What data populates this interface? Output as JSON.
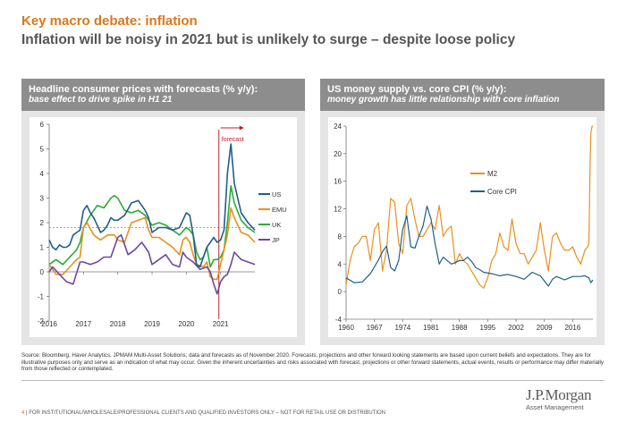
{
  "header": {
    "kicker": "Key macro debate: inflation",
    "title": "Inflation will be noisy in 2021 but is unlikely to surge – despite loose policy"
  },
  "left_panel": {
    "title": "Headline consumer prices with forecasts (% y/y):",
    "subtitle": "base effect to drive spike in H1 21",
    "forecast_label": "forecast"
  },
  "right_panel": {
    "title": "US money supply vs. core CPI (% y/y):",
    "subtitle": "money growth has little relationship with core inflation"
  },
  "source_text": "Source: Bloomberg, Haver Analytics, JPMAM Multi-Asset Solutions; data and forecasts as of November 2020. Forecasts, projections and other forward looking statements are based upon current beliefs and expectations. They are for illustrative purposes only and serve as an indication of what may occur. Given the inherent uncertainties and risks associated with forecast, projections or other forward statements, actual events, results or performance may differ materially from those reflected or contemplated.",
  "footer": {
    "page": "4",
    "separator": "|",
    "text": "FOR INSTITUTIONAL/WHOLESALE/PROFESSIONAL CLIENTS AND QUALIFIED INVESTORS ONLY – NOT FOR RETAIL USE OR DISTRIBUTION"
  },
  "logo": {
    "name": "J.P.Morgan",
    "sub": "Asset Management"
  },
  "colors": {
    "accent": "#d9781a",
    "us": "#1f5f8b",
    "emu": "#e8901e",
    "uk": "#2eaa3a",
    "jp": "#6a4a9c",
    "forecast": "#c0202a"
  },
  "chart_data": [
    {
      "type": "line",
      "title": "Headline consumer prices with forecasts (% y/y):",
      "subtitle": "base effect to drive spike in H1 21",
      "xlim": [
        2016.0,
        2022.0
      ],
      "ylim": [
        -2,
        6
      ],
      "x_ticks": [
        "2016",
        "2017",
        "2018",
        "2019",
        "2020",
        "2021"
      ],
      "y_ticks": [
        "-2",
        "-1",
        "0",
        "1",
        "2",
        "3",
        "4",
        "5",
        "6"
      ],
      "forecast_start": 2020.95,
      "reference_line": 1.8,
      "legend_position": "right",
      "series": [
        {
          "name": "US",
          "color": "#1f5f8b",
          "x": [
            2016.0,
            2016.1,
            2016.2,
            2016.3,
            2016.4,
            2016.5,
            2016.6,
            2016.7,
            2016.8,
            2016.9,
            2017.0,
            2017.1,
            2017.2,
            2017.3,
            2017.4,
            2017.5,
            2017.6,
            2017.7,
            2017.8,
            2017.9,
            2018.0,
            2018.2,
            2018.4,
            2018.6,
            2018.8,
            2018.9,
            2019.0,
            2019.2,
            2019.4,
            2019.6,
            2019.8,
            2019.9,
            2020.0,
            2020.1,
            2020.2,
            2020.3,
            2020.4,
            2020.5,
            2020.6,
            2020.8,
            2020.9,
            2021.0,
            2021.1,
            2021.2,
            2021.3,
            2021.4,
            2021.5,
            2021.6,
            2021.8,
            2022.0
          ],
          "y": [
            1.3,
            1.0,
            0.9,
            1.1,
            1.0,
            1.0,
            1.1,
            1.5,
            1.6,
            1.7,
            2.5,
            2.7,
            2.4,
            2.2,
            1.9,
            1.6,
            1.7,
            1.9,
            2.2,
            2.1,
            2.1,
            2.3,
            2.8,
            2.9,
            2.5,
            2.2,
            1.6,
            1.8,
            1.8,
            1.7,
            1.8,
            2.1,
            2.4,
            2.3,
            1.5,
            0.3,
            0.2,
            0.6,
            1.0,
            1.4,
            1.2,
            1.3,
            1.7,
            4.0,
            5.2,
            3.6,
            3.0,
            2.4,
            2.0,
            1.7
          ]
        },
        {
          "name": "EMU",
          "color": "#e8901e",
          "x": [
            2016.0,
            2016.2,
            2016.4,
            2016.6,
            2016.8,
            2016.9,
            2017.0,
            2017.1,
            2017.3,
            2017.5,
            2017.7,
            2017.9,
            2018.0,
            2018.2,
            2018.4,
            2018.6,
            2018.8,
            2018.9,
            2019.0,
            2019.2,
            2019.4,
            2019.6,
            2019.8,
            2019.9,
            2020.0,
            2020.1,
            2020.2,
            2020.3,
            2020.5,
            2020.6,
            2020.7,
            2020.8,
            2020.9,
            2021.0,
            2021.1,
            2021.2,
            2021.3,
            2021.4,
            2021.6,
            2021.8,
            2022.0
          ],
          "y": [
            0.3,
            -0.1,
            -0.1,
            0.2,
            0.5,
            0.6,
            1.8,
            2.0,
            1.5,
            1.3,
            1.5,
            1.5,
            1.3,
            1.2,
            2.0,
            2.1,
            2.2,
            1.7,
            1.4,
            1.4,
            1.2,
            1.0,
            0.7,
            1.3,
            1.4,
            1.2,
            0.7,
            0.3,
            0.2,
            0.4,
            -0.2,
            -0.3,
            -0.3,
            0.3,
            0.9,
            1.5,
            2.6,
            2.2,
            1.6,
            1.5,
            1.2
          ]
        },
        {
          "name": "UK",
          "color": "#2eaa3a",
          "x": [
            2016.0,
            2016.2,
            2016.4,
            2016.6,
            2016.8,
            2016.9,
            2017.0,
            2017.2,
            2017.4,
            2017.6,
            2017.8,
            2017.9,
            2018.0,
            2018.2,
            2018.4,
            2018.6,
            2018.8,
            2019.0,
            2019.2,
            2019.4,
            2019.6,
            2019.8,
            2020.0,
            2020.1,
            2020.2,
            2020.3,
            2020.4,
            2020.5,
            2020.6,
            2020.7,
            2020.8,
            2020.9,
            2021.0,
            2021.1,
            2021.2,
            2021.3,
            2021.4,
            2021.6,
            2021.8,
            2022.0
          ],
          "y": [
            0.3,
            0.5,
            0.3,
            0.6,
            0.9,
            1.2,
            1.8,
            2.3,
            2.7,
            2.6,
            3.0,
            3.1,
            3.0,
            2.5,
            2.4,
            2.5,
            2.3,
            1.9,
            2.0,
            1.9,
            1.7,
            1.5,
            1.8,
            1.7,
            1.5,
            0.8,
            0.5,
            0.6,
            1.0,
            0.2,
            0.5,
            0.5,
            0.6,
            0.9,
            2.0,
            3.5,
            2.8,
            2.1,
            1.8,
            1.6
          ]
        },
        {
          "name": "JP",
          "color": "#6a4a9c",
          "x": [
            2016.0,
            2016.1,
            2016.3,
            2016.5,
            2016.7,
            2016.9,
            2017.0,
            2017.2,
            2017.4,
            2017.6,
            2017.8,
            2018.0,
            2018.1,
            2018.3,
            2018.5,
            2018.7,
            2018.9,
            2019.0,
            2019.2,
            2019.4,
            2019.6,
            2019.8,
            2019.9,
            2020.0,
            2020.2,
            2020.4,
            2020.6,
            2020.7,
            2020.8,
            2020.9,
            2021.0,
            2021.1,
            2021.2,
            2021.3,
            2021.4,
            2021.6,
            2021.8,
            2022.0
          ],
          "y": [
            0.0,
            0.2,
            -0.1,
            -0.4,
            -0.5,
            0.4,
            0.4,
            0.3,
            0.4,
            0.6,
            0.6,
            1.4,
            1.5,
            0.7,
            0.9,
            1.2,
            0.8,
            0.3,
            0.5,
            0.7,
            0.3,
            0.2,
            0.8,
            0.6,
            0.4,
            0.1,
            0.2,
            0.0,
            -0.5,
            -0.9,
            -0.4,
            -0.2,
            -0.1,
            0.3,
            0.8,
            0.5,
            0.4,
            0.3
          ]
        }
      ]
    },
    {
      "type": "line",
      "title": "US money supply vs. core CPI (% y/y):",
      "subtitle": "money growth has little relationship with core inflation",
      "xlim": [
        1960,
        2021
      ],
      "ylim": [
        -4,
        24
      ],
      "x_ticks": [
        "1960",
        "1967",
        "1974",
        "1981",
        "1988",
        "1995",
        "2002",
        "2009",
        "2016"
      ],
      "y_ticks": [
        "-4",
        "0",
        "4",
        "8",
        "12",
        "16",
        "20",
        "24"
      ],
      "legend_position": "center-left",
      "series": [
        {
          "name": "M2",
          "color": "#e8901e",
          "x": [
            1960,
            1961,
            1962,
            1963,
            1964,
            1965,
            1966,
            1967,
            1968,
            1969,
            1970,
            1971,
            1972,
            1973,
            1974,
            1975,
            1976,
            1977,
            1978,
            1979,
            1980,
            1981,
            1982,
            1983,
            1984,
            1985,
            1986,
            1987,
            1988,
            1989,
            1990,
            1991,
            1992,
            1993,
            1994,
            1995,
            1996,
            1997,
            1998,
            1999,
            2000,
            2001,
            2002,
            2003,
            2004,
            2005,
            2006,
            2007,
            2008,
            2009,
            2010,
            2011,
            2012,
            2013,
            2014,
            2015,
            2016,
            2017,
            2018,
            2019,
            2019.7,
            2020.0,
            2020.3,
            2020.5,
            2020.8,
            2021.0
          ],
          "y": [
            1.0,
            4.5,
            6.5,
            7.0,
            8.0,
            8.0,
            4.5,
            9.0,
            10.0,
            3.0,
            6.0,
            13.5,
            13.0,
            7.0,
            5.5,
            12.5,
            13.5,
            10.5,
            8.0,
            8.0,
            9.0,
            10.0,
            9.0,
            12.5,
            8.0,
            9.0,
            9.5,
            4.0,
            5.5,
            4.5,
            4.0,
            3.0,
            2.0,
            1.0,
            0.5,
            2.0,
            4.5,
            5.5,
            8.5,
            6.5,
            6.0,
            10.5,
            7.0,
            5.5,
            5.5,
            4.0,
            5.0,
            6.0,
            10.0,
            6.0,
            3.0,
            8.0,
            8.5,
            7.0,
            6.0,
            6.0,
            6.5,
            5.0,
            4.0,
            6.0,
            6.5,
            7.0,
            18.0,
            23.0,
            24.0,
            24.0
          ]
        },
        {
          "name": "Core CPI",
          "color": "#1f5f8b",
          "x": [
            1960,
            1962,
            1964,
            1966,
            1967,
            1968,
            1969,
            1970,
            1971,
            1972,
            1973,
            1974,
            1975,
            1976,
            1977,
            1978,
            1979,
            1980,
            1981,
            1982,
            1983,
            1984,
            1985,
            1986,
            1987,
            1988,
            1989,
            1990,
            1991,
            1992,
            1993,
            1994,
            1996,
            1998,
            2000,
            2002,
            2004,
            2006,
            2008,
            2010,
            2011,
            2012,
            2014,
            2016,
            2018,
            2019,
            2020,
            2020.5,
            2021
          ],
          "y": [
            2.0,
            1.3,
            1.4,
            2.6,
            3.6,
            4.6,
            5.8,
            6.6,
            3.5,
            3.0,
            4.5,
            9.0,
            11.0,
            6.5,
            6.3,
            8.0,
            9.5,
            12.4,
            10.5,
            7.0,
            4.0,
            5.0,
            4.5,
            4.0,
            4.2,
            4.5,
            4.5,
            5.0,
            4.4,
            3.5,
            3.2,
            2.8,
            2.6,
            2.3,
            2.5,
            2.2,
            1.8,
            2.8,
            2.3,
            0.8,
            1.8,
            2.2,
            1.7,
            2.2,
            2.2,
            2.3,
            2.0,
            1.3,
            1.7
          ]
        }
      ]
    }
  ]
}
